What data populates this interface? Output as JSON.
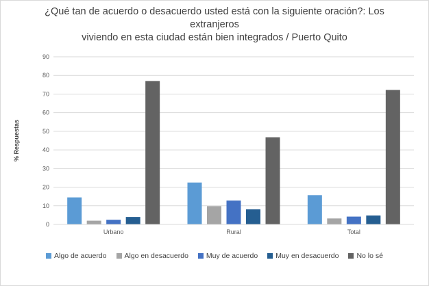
{
  "chart_data": {
    "type": "bar",
    "title_line1": "¿Qué tan de acuerdo o desacuerdo usted está con la siguiente oración?: Los extranjeros",
    "title_line2": "viviendo en esta ciudad están bien integrados / Puerto Quito",
    "ylabel": "% Respuestas",
    "xlabel": "",
    "ylim": [
      0,
      90
    ],
    "yticks": [
      0,
      10,
      20,
      30,
      40,
      50,
      60,
      70,
      80,
      90
    ],
    "grid": true,
    "legend_position": "bottom",
    "categories": [
      "Urbano",
      "Rural",
      "Total"
    ],
    "series": [
      {
        "name": "Algo de acuerdo",
        "color": "#5b9bd5",
        "values": [
          14.5,
          22.5,
          15.7
        ]
      },
      {
        "name": "Algo en desacuerdo",
        "color": "#a5a5a5",
        "values": [
          2.0,
          9.8,
          3.2
        ]
      },
      {
        "name": "Muy de acuerdo",
        "color": "#4472c4",
        "values": [
          2.5,
          12.8,
          4.2
        ]
      },
      {
        "name": "Muy en desacuerdo",
        "color": "#255e91",
        "values": [
          4.0,
          8.1,
          4.8
        ]
      },
      {
        "name": "No lo sé",
        "color": "#636363",
        "values": [
          77.0,
          46.8,
          72.2
        ]
      }
    ]
  }
}
